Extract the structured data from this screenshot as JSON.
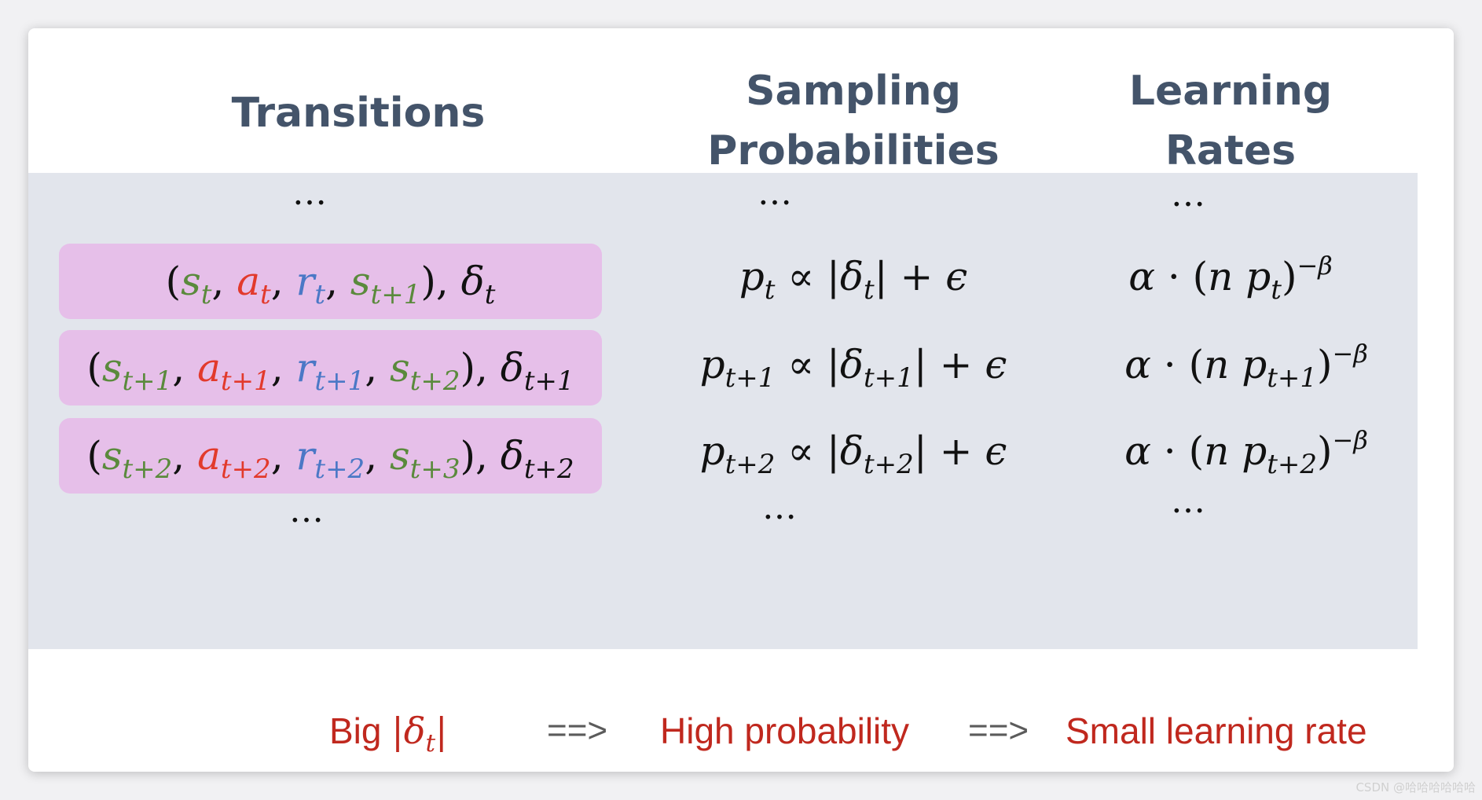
{
  "headers": {
    "transitions": [
      "Transitions"
    ],
    "sampling": [
      "Sampling",
      "Probabilities"
    ],
    "learning": [
      "Learning",
      "Rates"
    ]
  },
  "ellipsis": "…",
  "rows": [
    {
      "transition": {
        "s1": "s",
        "s1_sub": "t",
        "a": "a",
        "a_sub": "t",
        "r": "r",
        "r_sub": "t",
        "s2": "s",
        "s2_sub": "t+1",
        "delta": "δ",
        "delta_sub": "t"
      },
      "probability": {
        "p": "p",
        "p_sub": "t",
        "rel": "∝",
        "d": "δ",
        "d_sub": "t",
        "plus": "+",
        "eps": "ϵ"
      },
      "rate": {
        "alpha": "α",
        "dot": "·",
        "n": "n",
        "p": "p",
        "p_sub": "t",
        "exp": "−β"
      }
    },
    {
      "transition": {
        "s1": "s",
        "s1_sub": "t+1",
        "a": "a",
        "a_sub": "t+1",
        "r": "r",
        "r_sub": "t+1",
        "s2": "s",
        "s2_sub": "t+2",
        "delta": "δ",
        "delta_sub": "t+1"
      },
      "probability": {
        "p": "p",
        "p_sub": "t+1",
        "rel": "∝",
        "d": "δ",
        "d_sub": "t+1",
        "plus": "+",
        "eps": "ϵ"
      },
      "rate": {
        "alpha": "α",
        "dot": "·",
        "n": "n",
        "p": "p",
        "p_sub": "t+1",
        "exp": "−β"
      }
    },
    {
      "transition": {
        "s1": "s",
        "s1_sub": "t+2",
        "a": "a",
        "a_sub": "t+2",
        "r": "r",
        "r_sub": "t+2",
        "s2": "s",
        "s2_sub": "t+3",
        "delta": "δ",
        "delta_sub": "t+2"
      },
      "probability": {
        "p": "p",
        "p_sub": "t+2",
        "rel": "∝",
        "d": "δ",
        "d_sub": "t+2",
        "plus": "+",
        "eps": "ϵ"
      },
      "rate": {
        "alpha": "α",
        "dot": "·",
        "n": "n",
        "p": "p",
        "p_sub": "t+2",
        "exp": "−β"
      }
    }
  ],
  "footer": {
    "big_label": "Big",
    "big_delta": "δ",
    "big_delta_sub": "t",
    "arrow": "==>",
    "high_probability": "High probability",
    "small_rate": "Small learning rate"
  },
  "watermark": "CSDN @哈哈哈哈哈哈"
}
